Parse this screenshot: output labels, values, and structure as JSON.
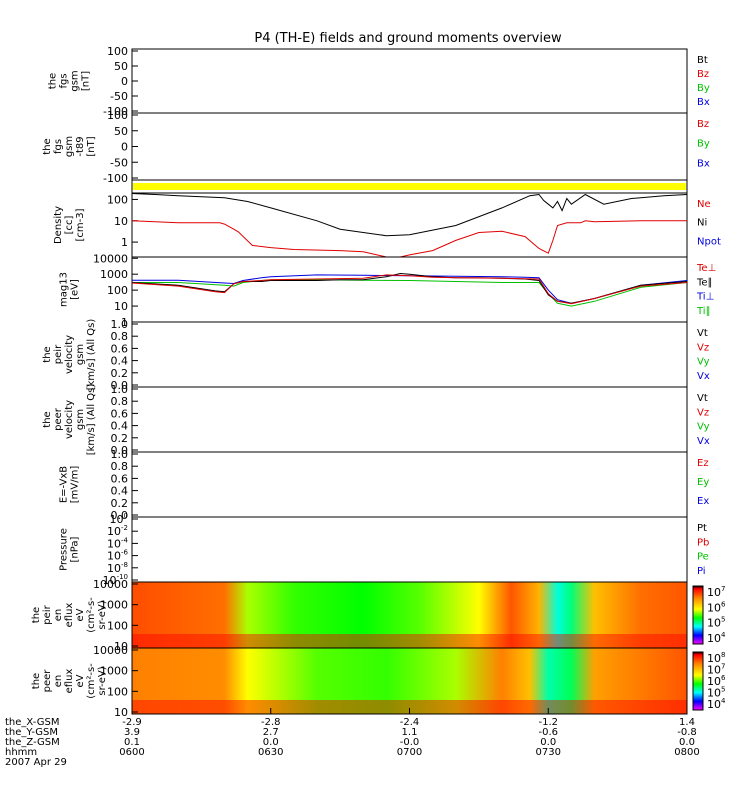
{
  "chart_data": {
    "type": "line",
    "title": "P4 (TH-E) fields and ground moments overview",
    "time_axis": {
      "ticks": [
        "0600",
        "0630",
        "0700",
        "0730",
        "0800"
      ],
      "rows": [
        {
          "label": "the_X-GSM",
          "values": [
            "-2.9",
            "-2.8",
            "-2.4",
            "-1.2",
            "1.4"
          ]
        },
        {
          "label": "the_Y-GSM",
          "values": [
            "3.9",
            "2.7",
            "1.1",
            "-0.6",
            "-0.8"
          ]
        },
        {
          "label": "the_Z-GSM",
          "values": [
            "0.1",
            "0.0",
            "-0.0",
            "0.0",
            "0.0"
          ]
        },
        {
          "label": "hhmm",
          "values": [
            "0600",
            "0630",
            "0700",
            "0730",
            "0800"
          ]
        }
      ],
      "date": "2007 Apr 29"
    },
    "panels": [
      {
        "id": "fgs_gsm",
        "ylabel": [
          "the",
          "fgs",
          "gsm",
          "[nT]"
        ],
        "ylim": [
          -100,
          100
        ],
        "yticks": [
          "100",
          "50",
          "0",
          "-50",
          "-100"
        ],
        "legend": [
          {
            "label": "Bt",
            "color": "#000000"
          },
          {
            "label": "Bz",
            "color": "#e00000"
          },
          {
            "label": "By",
            "color": "#00c000"
          },
          {
            "label": "Bx",
            "color": "#0000e0"
          }
        ],
        "series": []
      },
      {
        "id": "fgs_gsm_t89",
        "ylabel": [
          "the",
          "fgs",
          "gsm",
          "-t89",
          "[nT]"
        ],
        "ylim": [
          -100,
          100
        ],
        "yticks": [
          "100",
          "50",
          "0",
          "-50",
          "-100"
        ],
        "legend": [
          {
            "label": "Bz",
            "color": "#e00000"
          },
          {
            "label": "By",
            "color": "#00c000"
          },
          {
            "label": "Bx",
            "color": "#0000e0"
          }
        ],
        "series": []
      },
      {
        "id": "state_bar",
        "ylabel": [],
        "bar_color": "#ffff00",
        "legend": [],
        "series": []
      },
      {
        "id": "density",
        "ylabel": [
          "Density",
          "[cc]",
          "[cm-3]"
        ],
        "scale": "log",
        "ylim": [
          0.2,
          200
        ],
        "yticks": [
          {
            "v": 100,
            "t": "100"
          },
          {
            "v": 10,
            "t": "10"
          },
          {
            "v": 1,
            "t": "1"
          }
        ],
        "legend": [
          {
            "label": "Ne",
            "color": "#e00000"
          },
          {
            "label": "Ni",
            "color": "#000000"
          },
          {
            "label": "Npot",
            "color": "#0000e0"
          }
        ],
        "series": [
          {
            "name": "Ni",
            "color": "#000000",
            "x": [
              0,
              5,
              10,
              20,
              25,
              30,
              40,
              45,
              55,
              60,
              70,
              80,
              86,
              88,
              89,
              90,
              91,
              92,
              93,
              94,
              95,
              98,
              102,
              108,
              115,
              120
            ],
            "y": [
              190,
              170,
              150,
              120,
              80,
              40,
              10,
              4,
              2,
              2.2,
              6,
              40,
              150,
              170,
              90,
              60,
              40,
              80,
              30,
              110,
              60,
              170,
              60,
              110,
              150,
              170
            ]
          },
          {
            "name": "Ne",
            "color": "#e00000",
            "x": [
              0,
              10,
              19,
              20,
              22,
              23,
              26,
              30,
              35,
              45,
              50,
              55,
              58,
              60,
              65,
              70,
              75,
              80,
              85,
              88,
              90,
              91,
              92,
              94,
              97,
              98,
              100,
              110,
              120
            ],
            "y": [
              10,
              8,
              8,
              7,
              4,
              3,
              0.7,
              0.55,
              0.45,
              0.4,
              0.35,
              0.2,
              0.2,
              0.25,
              0.4,
              1.2,
              2.8,
              3.2,
              1.8,
              0.5,
              0.3,
              1.2,
              6,
              8,
              8,
              10,
              9,
              10,
              10
            ]
          },
          {
            "name": "Npot",
            "color": "#0000e0",
            "x": [],
            "y": []
          }
        ]
      },
      {
        "id": "temperature",
        "ylabel": [
          "mag13",
          "[eV]"
        ],
        "scale": "log",
        "ylim": [
          1,
          12000
        ],
        "yticks": [
          {
            "v": 10000,
            "t": "10000"
          },
          {
            "v": 1000,
            "t": "1000"
          },
          {
            "v": 100,
            "t": "100"
          },
          {
            "v": 10,
            "t": "10"
          },
          {
            "v": 1,
            "t": "1"
          }
        ],
        "legend": [
          {
            "label": "Te⊥",
            "color": "#e00000"
          },
          {
            "label": "Te∥",
            "color": "#000000"
          },
          {
            "label": "Ti⊥",
            "color": "#0000e0"
          },
          {
            "label": "Ti∥",
            "color": "#00c000"
          }
        ],
        "series": [
          {
            "name": "Ti⊥",
            "color": "#0000e0",
            "x": [
              0,
              10,
              20,
              22,
              24,
              28,
              30,
              40,
              50,
              60,
              70,
              80,
              85,
              88,
              90,
              92,
              95,
              100,
              110,
              120
            ],
            "y": [
              420,
              420,
              280,
              260,
              400,
              600,
              700,
              900,
              850,
              800,
              750,
              700,
              650,
              600,
              100,
              25,
              15,
              30,
              200,
              400
            ]
          },
          {
            "name": "Ti∥",
            "color": "#00c000",
            "x": [
              0,
              10,
              20,
              22,
              24,
              28,
              30,
              40,
              50,
              60,
              70,
              80,
              85,
              88,
              90,
              92,
              95,
              100,
              110,
              120
            ],
            "y": [
              300,
              300,
              200,
              180,
              300,
              400,
              450,
              450,
              420,
              400,
              350,
              300,
              300,
              300,
              60,
              15,
              10,
              20,
              150,
              300
            ]
          },
          {
            "name": "Te∥",
            "color": "#000000",
            "x": [
              0,
              10,
              18,
              20,
              22,
              24,
              28,
              30,
              40,
              45,
              50,
              55,
              58,
              60,
              65,
              70,
              75,
              80,
              85,
              88,
              90,
              92,
              95,
              100,
              110,
              120
            ],
            "y": [
              300,
              200,
              90,
              80,
              250,
              350,
              350,
              400,
              400,
              450,
              450,
              700,
              1100,
              1000,
              700,
              600,
              600,
              550,
              500,
              400,
              50,
              20,
              15,
              30,
              200,
              350
            ]
          },
          {
            "name": "Te⊥",
            "color": "#e00000",
            "x": [
              0,
              10,
              18,
              20,
              22,
              24,
              28,
              30,
              40,
              50,
              55,
              60,
              65,
              70,
              80,
              88,
              90,
              92,
              95,
              100,
              110,
              120
            ],
            "y": [
              280,
              180,
              80,
              70,
              250,
              350,
              400,
              450,
              500,
              550,
              900,
              800,
              650,
              600,
              550,
              500,
              60,
              20,
              14,
              30,
              180,
              300
            ]
          }
        ]
      },
      {
        "id": "peir_velocity",
        "ylabel": [
          "the",
          "peir",
          "velocity",
          "gsm",
          "[km/s] (All Qs)"
        ],
        "ylim": [
          0,
          1
        ],
        "yticks": [
          "1.0",
          "0.8",
          "0.6",
          "0.4",
          "0.2",
          "0.0"
        ],
        "legend": [
          {
            "label": "Vt",
            "color": "#000000"
          },
          {
            "label": "Vz",
            "color": "#e00000"
          },
          {
            "label": "Vy",
            "color": "#00c000"
          },
          {
            "label": "Vx",
            "color": "#0000e0"
          }
        ],
        "series": []
      },
      {
        "id": "peer_velocity",
        "ylabel": [
          "the",
          "peer",
          "velocity",
          "gsm",
          "[km/s] (All Qs)"
        ],
        "ylim": [
          0,
          1
        ],
        "yticks": [
          "1.0",
          "0.8",
          "0.6",
          "0.4",
          "0.2",
          "0.0"
        ],
        "legend": [
          {
            "label": "Vt",
            "color": "#000000"
          },
          {
            "label": "Vz",
            "color": "#e00000"
          },
          {
            "label": "Vy",
            "color": "#00c000"
          },
          {
            "label": "Vx",
            "color": "#0000e0"
          }
        ],
        "series": []
      },
      {
        "id": "efield",
        "ylabel": [
          "E=-VxB",
          "[mV/m]"
        ],
        "ylim": [
          0,
          1
        ],
        "yticks": [
          "1.0",
          "0.8",
          "0.6",
          "0.4",
          "0.2",
          "0.0"
        ],
        "legend": [
          {
            "label": "Ez",
            "color": "#e00000"
          },
          {
            "label": "Ey",
            "color": "#00c000"
          },
          {
            "label": "Ex",
            "color": "#0000e0"
          }
        ],
        "series": []
      },
      {
        "id": "pressure",
        "ylabel": [
          "Pressure",
          "[nPa]"
        ],
        "scale": "log",
        "yticks": [
          {
            "m": "10",
            "e": "0"
          },
          {
            "m": "10",
            "e": "-2"
          },
          {
            "m": "10",
            "e": "-4"
          },
          {
            "m": "10",
            "e": "-6"
          },
          {
            "m": "10",
            "e": "-8"
          },
          {
            "m": "10",
            "e": "-10"
          }
        ],
        "legend": [
          {
            "label": "Pt",
            "color": "#000000"
          },
          {
            "label": "Pb",
            "color": "#e00000"
          },
          {
            "label": "Pe",
            "color": "#00c000"
          },
          {
            "label": "Pi",
            "color": "#0000e0"
          }
        ],
        "series": []
      },
      {
        "id": "peir_spec",
        "type": "heatmap",
        "ylabel": [
          "the",
          "peir",
          "en",
          "eflux",
          "eV",
          "(cm²-s-",
          "sr-eV)"
        ],
        "yticks": [
          "10000",
          "1000",
          "100",
          "10"
        ],
        "colorbar_ticks": [
          {
            "m": "10",
            "e": "7"
          },
          {
            "m": "10",
            "e": "6"
          },
          {
            "m": "10",
            "e": "5"
          },
          {
            "m": "10",
            "e": "4"
          }
        ],
        "features": [
          {
            "t": 0,
            "level": 0.86
          },
          {
            "t": 20,
            "level": 0.82
          },
          {
            "t": 25,
            "level": 0.55
          },
          {
            "t": 35,
            "level": 0.48
          },
          {
            "t": 50,
            "level": 0.45
          },
          {
            "t": 62,
            "level": 0.5
          },
          {
            "t": 75,
            "level": 0.6
          },
          {
            "t": 82,
            "level": 0.85
          },
          {
            "t": 88,
            "level": 0.72
          },
          {
            "t": 92,
            "level": 0.32
          },
          {
            "t": 95,
            "level": 0.38
          },
          {
            "t": 100,
            "level": 0.7
          },
          {
            "t": 110,
            "level": 0.82
          },
          {
            "t": 120,
            "level": 0.85
          }
        ]
      },
      {
        "id": "peer_spec",
        "type": "heatmap",
        "ylabel": [
          "the",
          "peer",
          "en",
          "eflux",
          "eV",
          "(cm²-s-",
          "sr-eV)"
        ],
        "yticks": [
          "10000",
          "1000",
          "100",
          "10"
        ],
        "colorbar_ticks": [
          {
            "m": "10",
            "e": "8"
          },
          {
            "m": "10",
            "e": "7"
          },
          {
            "m": "10",
            "e": "6"
          },
          {
            "m": "10",
            "e": "5"
          },
          {
            "m": "10",
            "e": "4"
          }
        ],
        "features": [
          {
            "t": 0,
            "level": 0.8
          },
          {
            "t": 20,
            "level": 0.78
          },
          {
            "t": 25,
            "level": 0.6
          },
          {
            "t": 40,
            "level": 0.5
          },
          {
            "t": 55,
            "level": 0.48
          },
          {
            "t": 70,
            "level": 0.55
          },
          {
            "t": 80,
            "level": 0.8
          },
          {
            "t": 86,
            "level": 0.7
          },
          {
            "t": 90,
            "level": 0.35
          },
          {
            "t": 95,
            "level": 0.4
          },
          {
            "t": 100,
            "level": 0.75
          },
          {
            "t": 120,
            "level": 0.85
          }
        ]
      }
    ]
  }
}
